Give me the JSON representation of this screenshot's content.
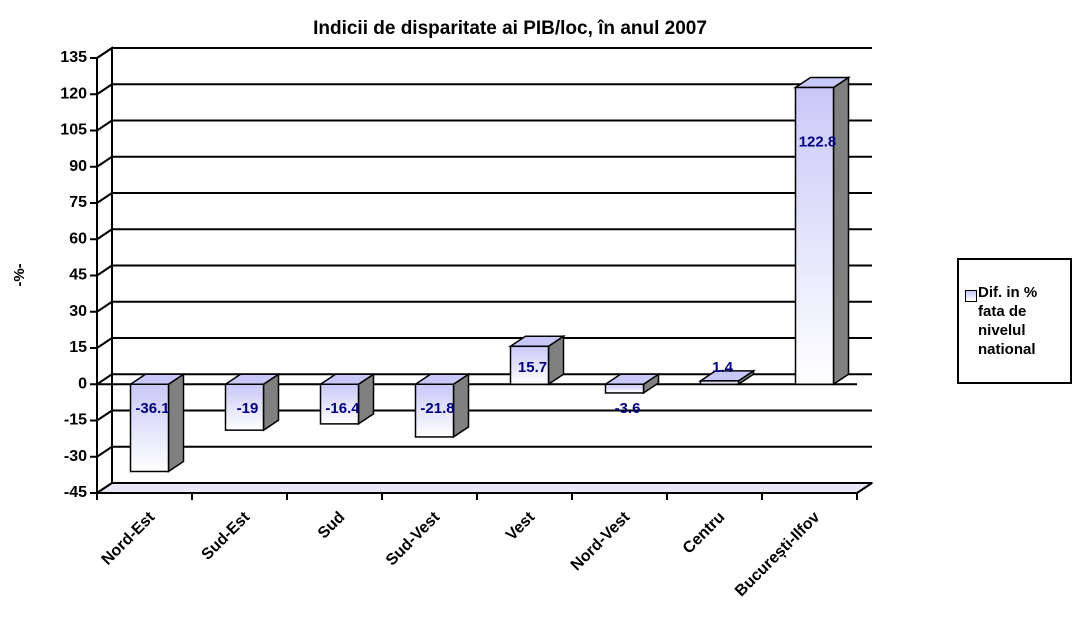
{
  "chart_data": {
    "type": "bar3d",
    "title": "Indicii de disparitate ai PIB/loc, în anul 2007",
    "y_label": "-%-",
    "categories": [
      "Nord-Est",
      "Sud-Est",
      "Sud",
      "Sud-Vest",
      "Vest",
      "Nord-Vest",
      "Centru",
      "București-Ilfov"
    ],
    "series": [
      {
        "name": "Dif. in % fata de nivelul national",
        "color": "#c8c8f8",
        "values": [
          -36.1,
          -19,
          -16.4,
          -21.8,
          15.7,
          -3.6,
          1.4,
          122.8
        ]
      }
    ],
    "ylim": [
      -45,
      135
    ],
    "yticks": [
      -45,
      -30,
      -15,
      0,
      15,
      30,
      45,
      60,
      75,
      90,
      105,
      120,
      135
    ],
    "grid": true,
    "legend": "right"
  }
}
